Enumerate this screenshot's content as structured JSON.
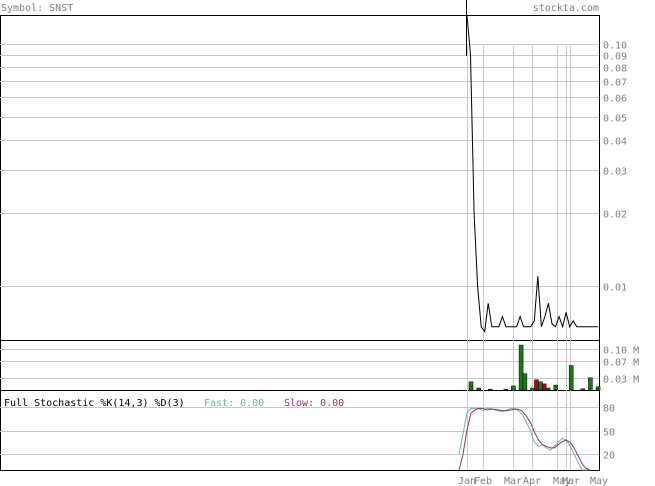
{
  "header": {
    "symbol_label": "Symbol: SNST",
    "site": "stockta.com"
  },
  "colors": {
    "text_gray": "#808080",
    "grid": "#c8c8c8",
    "price_line": "#000000",
    "volume_up": "#1a7a1a",
    "volume_down": "#c00000",
    "fast_k": "#5fb8b8",
    "slow_d": "#a03060",
    "fast_text": "#5fb8b8",
    "slow_text": "#a03060"
  },
  "chart_data": [
    {
      "type": "line",
      "panel": "price",
      "scale": "log",
      "ylim": [
        0.006,
        0.13
      ],
      "yticks": [
        "0.10",
        "0.09",
        "0.08",
        "0.07",
        "0.06",
        "0.05",
        "0.04",
        "0.03",
        "0.02",
        "0.01"
      ],
      "ytick_values": [
        0.1,
        0.09,
        0.08,
        0.07,
        0.06,
        0.05,
        0.04,
        0.03,
        0.02,
        0.01
      ],
      "series": [
        {
          "values": [
            0.13,
            0.09,
            0.02,
            0.01,
            0.0068,
            0.0065,
            0.0085,
            0.0068,
            0.0068,
            0.0068,
            0.0075,
            0.0068,
            0.0068,
            0.0068,
            0.0068,
            0.0075,
            0.0068,
            0.0068,
            0.0068,
            0.0072,
            0.011,
            0.0068,
            0.0075,
            0.0085,
            0.007,
            0.0068,
            0.0075,
            0.0068,
            0.0078,
            0.0068,
            0.0072,
            0.0068,
            0.0068,
            0.0068,
            0.0068,
            0.0068,
            0.0068,
            0.0068
          ]
        }
      ]
    },
    {
      "type": "bar",
      "panel": "volume",
      "yticks": [
        "0.10 M",
        "0.07 M",
        "0.03 M"
      ],
      "ytick_values": [
        0.1,
        0.07,
        0.03
      ],
      "ylim": [
        0,
        0.12
      ],
      "bars": [
        {
          "i": 0,
          "v": 0.02,
          "dir": "up"
        },
        {
          "i": 2,
          "v": 0.005,
          "dir": "up"
        },
        {
          "i": 5,
          "v": 0.002,
          "dir": "up"
        },
        {
          "i": 9,
          "v": 0.002,
          "dir": "up"
        },
        {
          "i": 11,
          "v": 0.01,
          "dir": "up"
        },
        {
          "i": 13,
          "v": 0.11,
          "dir": "up"
        },
        {
          "i": 14,
          "v": 0.04,
          "dir": "up"
        },
        {
          "i": 16,
          "v": 0.005,
          "dir": "up"
        },
        {
          "i": 17,
          "v": 0.025,
          "dir": "down"
        },
        {
          "i": 18,
          "v": 0.02,
          "dir": "up"
        },
        {
          "i": 19,
          "v": 0.015,
          "dir": "down"
        },
        {
          "i": 20,
          "v": 0.005,
          "dir": "up"
        },
        {
          "i": 22,
          "v": 0.012,
          "dir": "up"
        },
        {
          "i": 26,
          "v": 0.06,
          "dir": "up"
        },
        {
          "i": 29,
          "v": 0.003,
          "dir": "up"
        },
        {
          "i": 31,
          "v": 0.03,
          "dir": "up"
        },
        {
          "i": 33,
          "v": 0.008,
          "dir": "up"
        }
      ]
    },
    {
      "type": "line",
      "panel": "stochastic",
      "title": "Full Stochastic %K(14,3) %D(3)",
      "fast_label": "Fast: 0.00",
      "slow_label": "Slow: 0.00",
      "ylim": [
        0,
        100
      ],
      "yticks": [
        "80",
        "50",
        "20"
      ],
      "ytick_values": [
        80,
        50,
        20
      ],
      "series": [
        {
          "name": "fast",
          "values": [
            20,
            45,
            72,
            78,
            78,
            78,
            75,
            78,
            78,
            76,
            75,
            74,
            76,
            78,
            78,
            75,
            70,
            60,
            50,
            35,
            30,
            32,
            28,
            25,
            30,
            35,
            40,
            38,
            30,
            20,
            10,
            0,
            0,
            0
          ]
        },
        {
          "name": "slow",
          "values": [
            0,
            20,
            50,
            72,
            76,
            78,
            78,
            76,
            77,
            77,
            76,
            75,
            75,
            76,
            77,
            77,
            74,
            68,
            60,
            48,
            38,
            32,
            30,
            28,
            28,
            32,
            36,
            38,
            35,
            28,
            18,
            8,
            2,
            0
          ]
        }
      ]
    }
  ],
  "x_axis": {
    "tick_labels": [
      "Jan",
      "Feb",
      "Mar",
      "Apr",
      "May",
      "Mar",
      "May"
    ]
  }
}
